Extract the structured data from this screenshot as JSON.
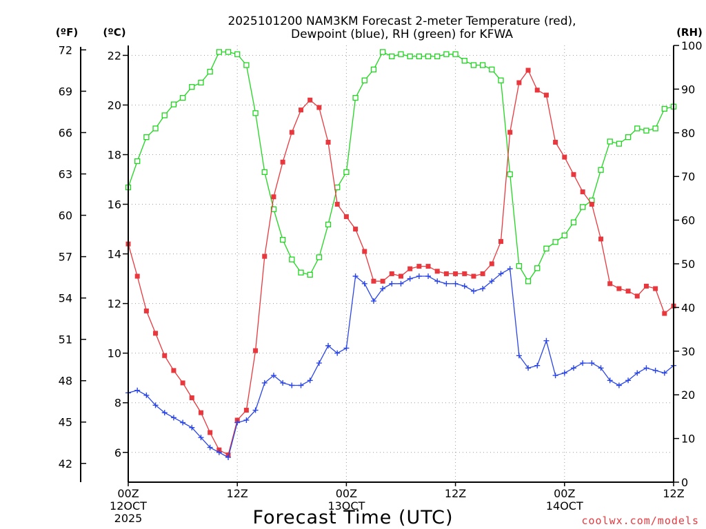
{
  "chart_data": {
    "type": "line",
    "title_line1": "2025101200 NAM3KM Forecast 2-meter Temperature (red),",
    "title_line2": "Dewpoint (blue), RH (green) for KFWA",
    "xlabel": "Forecast Time (UTC)",
    "credit": "coolwx.com/models",
    "unit_f": "(ºF)",
    "unit_c": "(ºC)",
    "unit_rh": "(RH)",
    "colors": {
      "temperature": "#e8383d",
      "dewpoint": "#2a45e6",
      "rh": "#1fd61f",
      "credit": "#e8383d"
    },
    "x_range_hours": [
      0,
      60
    ],
    "x_ticks": [
      {
        "hour": 0,
        "lines": [
          "00Z",
          "12OCT",
          "2025"
        ]
      },
      {
        "hour": 12,
        "lines": [
          "12Z"
        ]
      },
      {
        "hour": 24,
        "lines": [
          "00Z",
          "13OCT"
        ]
      },
      {
        "hour": 36,
        "lines": [
          "12Z"
        ]
      },
      {
        "hour": 48,
        "lines": [
          "00Z",
          "14OCT"
        ]
      },
      {
        "hour": 60,
        "lines": [
          "12Z"
        ]
      }
    ],
    "y_left_c": {
      "range": [
        4.8,
        22.4
      ],
      "ticks": [
        6,
        8,
        10,
        12,
        14,
        16,
        18,
        20,
        22
      ]
    },
    "y_left_f": {
      "ticks": [
        42,
        45,
        48,
        51,
        54,
        57,
        60,
        63,
        66,
        69,
        72
      ]
    },
    "y_right_rh": {
      "range": [
        0,
        100
      ],
      "ticks": [
        0,
        10,
        20,
        30,
        40,
        50,
        60,
        70,
        80,
        90,
        100
      ]
    },
    "series": [
      {
        "name": "Temperature (°C)",
        "color": "#e8383d",
        "marker": "filled-square",
        "axis": "celsius",
        "hours": [
          0,
          1,
          2,
          3,
          4,
          5,
          6,
          7,
          8,
          9,
          10,
          11,
          12,
          13,
          14,
          15,
          16,
          17,
          18,
          19,
          20,
          21,
          22,
          23,
          24,
          25,
          26,
          27,
          28,
          29,
          30,
          31,
          32,
          33,
          34,
          35,
          36,
          37,
          38,
          39,
          40,
          41,
          42,
          43,
          44,
          45,
          46,
          47,
          48,
          49,
          50,
          51,
          52,
          53,
          54,
          55,
          56,
          57,
          58,
          59,
          60
        ],
        "values": [
          14.4,
          13.1,
          11.7,
          10.8,
          9.9,
          9.3,
          8.8,
          8.2,
          7.6,
          6.8,
          6.1,
          5.9,
          7.3,
          7.7,
          10.1,
          13.9,
          16.3,
          17.7,
          18.9,
          19.8,
          20.2,
          19.9,
          18.5,
          16.0,
          15.5,
          15.0,
          14.1,
          12.9,
          12.9,
          13.2,
          13.1,
          13.4,
          13.5,
          13.5,
          13.3,
          13.2,
          13.2,
          13.2,
          13.1,
          13.2,
          13.6,
          14.5,
          18.9,
          20.9,
          21.4,
          20.6,
          20.4,
          18.5,
          17.9,
          17.2,
          16.5,
          16.0,
          14.6,
          12.8,
          12.6,
          12.5,
          12.3,
          12.7,
          12.6,
          11.6,
          11.9
        ]
      },
      {
        "name": "Dewpoint (°C)",
        "color": "#2a45e6",
        "marker": "plus",
        "axis": "celsius",
        "hours": [
          0,
          1,
          2,
          3,
          4,
          5,
          6,
          7,
          8,
          9,
          10,
          11,
          12,
          13,
          14,
          15,
          16,
          17,
          18,
          19,
          20,
          21,
          22,
          23,
          24,
          25,
          26,
          27,
          28,
          29,
          30,
          31,
          32,
          33,
          34,
          35,
          36,
          37,
          38,
          39,
          40,
          41,
          42,
          43,
          44,
          45,
          46,
          47,
          48,
          49,
          50,
          51,
          52,
          53,
          54,
          55,
          56,
          57,
          58,
          59,
          60
        ],
        "values": [
          8.4,
          8.5,
          8.3,
          7.9,
          7.6,
          7.4,
          7.2,
          7.0,
          6.6,
          6.2,
          6.0,
          5.8,
          7.2,
          7.3,
          7.7,
          8.8,
          9.1,
          8.8,
          8.7,
          8.7,
          8.9,
          9.6,
          10.3,
          10.0,
          10.2,
          13.1,
          12.8,
          12.1,
          12.6,
          12.8,
          12.8,
          13.0,
          13.1,
          13.1,
          12.9,
          12.8,
          12.8,
          12.7,
          12.5,
          12.6,
          12.9,
          13.2,
          13.4,
          9.9,
          9.4,
          9.5,
          10.5,
          9.1,
          9.2,
          9.4,
          9.6,
          9.6,
          9.4,
          8.9,
          8.7,
          8.9,
          9.2,
          9.4,
          9.3,
          9.2,
          9.5
        ]
      },
      {
        "name": "RH (%)",
        "color": "#1fd61f",
        "marker": "open-square",
        "axis": "rh",
        "hours": [
          0,
          1,
          2,
          3,
          4,
          5,
          6,
          7,
          8,
          9,
          10,
          11,
          12,
          13,
          14,
          15,
          16,
          17,
          18,
          19,
          20,
          21,
          22,
          23,
          24,
          25,
          26,
          27,
          28,
          29,
          30,
          31,
          32,
          33,
          34,
          35,
          36,
          37,
          38,
          39,
          40,
          41,
          42,
          43,
          44,
          45,
          46,
          47,
          48,
          49,
          50,
          51,
          52,
          53,
          54,
          55,
          56,
          57,
          58,
          59,
          60
        ],
        "values": [
          67.5,
          73.5,
          79,
          81,
          84,
          86.5,
          88,
          90.5,
          91.5,
          94,
          98.5,
          98.5,
          98,
          95.5,
          84.5,
          71,
          62.5,
          55.5,
          51,
          48,
          47.5,
          51.5,
          59,
          67.5,
          71,
          88,
          92,
          94.5,
          98.5,
          97.5,
          98,
          97.5,
          97.5,
          97.5,
          97.5,
          98,
          98,
          96.5,
          95.5,
          95.5,
          94.5,
          92,
          70.5,
          49.5,
          46,
          49,
          53.5,
          55,
          56.5,
          59.5,
          63,
          64.5,
          71.5,
          78,
          77.5,
          79,
          81,
          80.5,
          81,
          85.5,
          86
        ]
      }
    ]
  }
}
